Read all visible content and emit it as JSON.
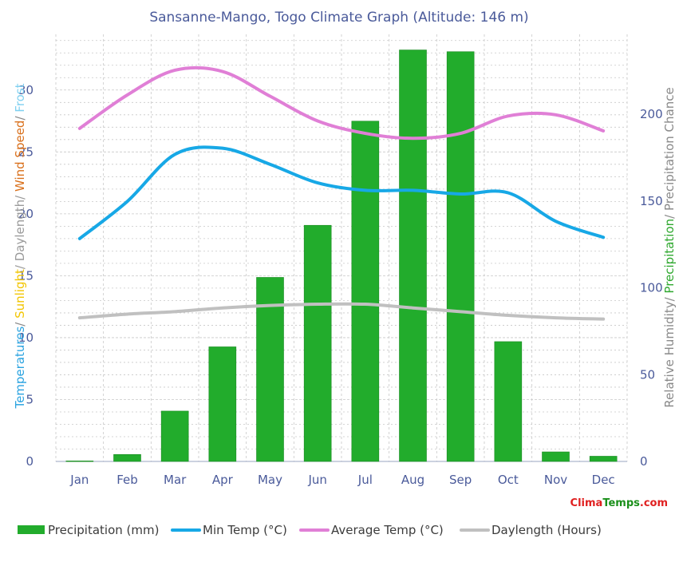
{
  "title": "Sansanne-Mango, Togo Climate Graph (Altitude: 146 m)",
  "left_axis_title": [
    {
      "text": "Temperatures",
      "color": "#2aa3e0"
    },
    {
      "text": "/ ",
      "color": "#888888"
    },
    {
      "text": "Sunlight",
      "color": "#f2c500"
    },
    {
      "text": "/ Daylength/ ",
      "color": "#9a9a9a"
    },
    {
      "text": "Wind Speed",
      "color": "#d96f1a"
    },
    {
      "text": "/ ",
      "color": "#888888"
    },
    {
      "text": "Frost",
      "color": "#7fd0f0"
    }
  ],
  "right_axis_title": [
    {
      "text": "Relative Humidity/ ",
      "color": "#8a8a8a"
    },
    {
      "text": "Precipitation",
      "color": "#2fa82f"
    },
    {
      "text": "/ Precipitation Chance",
      "color": "#8a8a8a"
    }
  ],
  "logo": {
    "part1": "Clima",
    "part2": "Temps",
    "part3": ".com",
    "color1": "#e02020",
    "color2": "#1a8f1a",
    "color3": "#e02020"
  },
  "chart_data": {
    "type": "bar+line",
    "categories": [
      "Jan",
      "Feb",
      "Mar",
      "Apr",
      "May",
      "Jun",
      "Jul",
      "Aug",
      "Sep",
      "Oct",
      "Nov",
      "Dec"
    ],
    "left_axis": {
      "ylim": [
        0,
        34.5
      ],
      "ticks": [
        0,
        5,
        10,
        15,
        20,
        25,
        30
      ]
    },
    "right_axis": {
      "ylim": [
        0,
        246
      ],
      "ticks": [
        0,
        50,
        100,
        150,
        200
      ]
    },
    "grid": true,
    "series": [
      {
        "name": "Precipitation (mm)",
        "kind": "bar",
        "axis": "right",
        "color": "#22ac2c",
        "values": [
          0.3,
          4,
          29,
          66,
          106,
          136,
          196,
          237,
          236,
          69,
          5.5,
          3
        ]
      },
      {
        "name": "Min Temp (°C)",
        "kind": "line",
        "axis": "left",
        "color": "#17a8e6",
        "values": [
          18.0,
          21.0,
          24.8,
          25.3,
          24.0,
          22.5,
          21.9,
          21.9,
          21.6,
          21.7,
          19.4,
          18.1
        ]
      },
      {
        "name": "Average Temp (°C)",
        "kind": "line",
        "axis": "left",
        "color": "#e07fd6",
        "values": [
          26.9,
          29.6,
          31.6,
          31.5,
          29.5,
          27.5,
          26.5,
          26.1,
          26.5,
          27.9,
          28.0,
          26.7
        ]
      },
      {
        "name": "Daylength (Hours)",
        "kind": "line",
        "axis": "left",
        "color": "#c0c0c0",
        "values": [
          11.6,
          11.9,
          12.1,
          12.4,
          12.6,
          12.7,
          12.7,
          12.4,
          12.1,
          11.8,
          11.6,
          11.5
        ]
      }
    ]
  }
}
